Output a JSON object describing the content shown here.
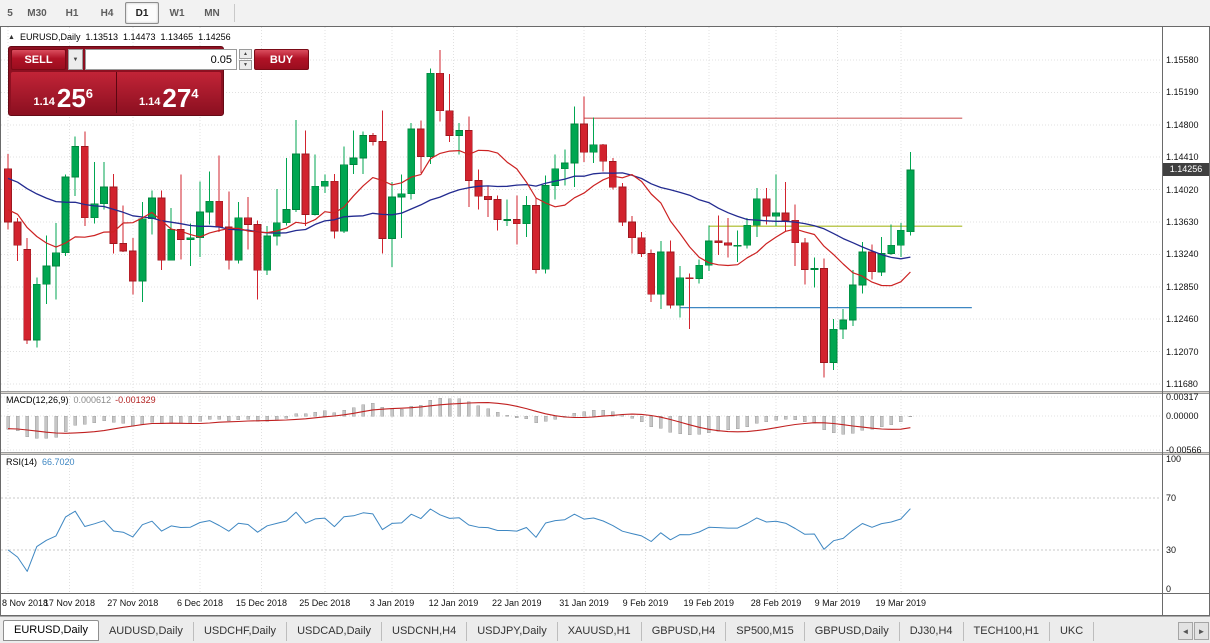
{
  "colors": {
    "bull": "#00a651",
    "bull_border": "#00843c",
    "bear": "#d2232e",
    "bear_border": "#9c1820",
    "ma_fast": "#cc2222",
    "ma_slow": "#232b90",
    "grid": "#e0e0e0",
    "macd_hist": "#c6c6c6",
    "macd_signal": "#c02020",
    "rsi_line": "#3e87c2",
    "badge_bg": "#404040",
    "trade_panel_red": "#8d1021",
    "button_red": "#c8102e"
  },
  "toolbar": {
    "timeframes": [
      {
        "label": "5",
        "active": false
      },
      {
        "label": "M30",
        "active": false
      },
      {
        "label": "H1",
        "active": false
      },
      {
        "label": "H4",
        "active": false
      },
      {
        "label": "D1",
        "active": true
      },
      {
        "label": "W1",
        "active": false
      },
      {
        "label": "MN",
        "active": false
      }
    ]
  },
  "chart": {
    "header": {
      "collapse_icon": "▲",
      "title": "EURUSD,Daily",
      "open": "1.13513",
      "high": "1.14473",
      "low": "1.13465",
      "close": "1.14256"
    },
    "trade_panel": {
      "sell_label": "SELL",
      "buy_label": "BUY",
      "volume": "0.05",
      "bid": {
        "prefix": "1.14",
        "big": "25",
        "sup": "6"
      },
      "ask": {
        "prefix": "1.14",
        "big": "27",
        "sup": "4"
      },
      "caret_icon": "▼",
      "spin_up_icon": "▲",
      "spin_down_icon": "▼"
    },
    "price_axis": {
      "ticks": [
        "1.15580",
        "1.15190",
        "1.14800",
        "1.14410",
        "1.14020",
        "1.13630",
        "1.13240",
        "1.12850",
        "1.12460",
        "1.12070",
        "1.11680"
      ],
      "current": "1.14256"
    },
    "macd_pane": {
      "name": "MACD(12,26,9)",
      "value_main": "0.000612",
      "value_signal": "-0.001329",
      "axis_ticks": [
        "0.00317",
        "0.00000",
        "-0.00566"
      ]
    },
    "rsi_pane": {
      "name": "RSI(14)",
      "value": "66.7020",
      "axis_ticks": [
        "100",
        "70",
        "30",
        "0"
      ],
      "levels": [
        70,
        30
      ]
    },
    "date_axis": [
      {
        "label": "8 Nov 2018",
        "i": 0
      },
      {
        "label": "17 Nov 2018",
        "i": 6.4
      },
      {
        "label": "27 Nov 2018",
        "i": 13
      },
      {
        "label": "6 Dec 2018",
        "i": 20
      },
      {
        "label": "15 Dec 2018",
        "i": 26.4
      },
      {
        "label": "25 Dec 2018",
        "i": 33
      },
      {
        "label": "3 Jan 2019",
        "i": 40
      },
      {
        "label": "12 Jan 2019",
        "i": 46.4
      },
      {
        "label": "22 Jan 2019",
        "i": 53
      },
      {
        "label": "31 Jan 2019",
        "i": 60
      },
      {
        "label": "9 Feb 2019",
        "i": 66.4
      },
      {
        "label": "19 Feb 2019",
        "i": 73
      },
      {
        "label": "28 Feb 2019",
        "i": 80
      },
      {
        "label": "9 Mar 2019",
        "i": 86.4
      },
      {
        "label": "19 Mar 2019",
        "i": 93
      }
    ]
  },
  "chart_data": {
    "type": "candlestick",
    "symbol": "EURUSD",
    "timeframe": "Daily",
    "columns": [
      "date",
      "open",
      "high",
      "low",
      "close"
    ],
    "candles": [
      [
        "2018.11.08",
        1.1427,
        1.1445,
        1.1354,
        1.1363
      ],
      [
        "2018.11.09",
        1.1363,
        1.1368,
        1.1316,
        1.1335
      ],
      [
        "2018.11.12",
        1.133,
        1.1344,
        1.1216,
        1.1221
      ],
      [
        "2018.11.13",
        1.1221,
        1.1296,
        1.1212,
        1.1288
      ],
      [
        "2018.11.14",
        1.1288,
        1.1347,
        1.1264,
        1.131
      ],
      [
        "2018.11.15",
        1.131,
        1.1362,
        1.127,
        1.1326
      ],
      [
        "2018.11.16",
        1.1326,
        1.142,
        1.1322,
        1.1417
      ],
      [
        "2018.11.19",
        1.1417,
        1.1466,
        1.1394,
        1.1454
      ],
      [
        "2018.11.20",
        1.1454,
        1.1472,
        1.1358,
        1.1368
      ],
      [
        "2018.11.21",
        1.1368,
        1.1435,
        1.1361,
        1.1385
      ],
      [
        "2018.11.22",
        1.1385,
        1.1435,
        1.1378,
        1.1405
      ],
      [
        "2018.11.23",
        1.1405,
        1.1421,
        1.1325,
        1.1337
      ],
      [
        "2018.11.26",
        1.1337,
        1.1383,
        1.1327,
        1.1328
      ],
      [
        "2018.11.27",
        1.1328,
        1.1344,
        1.1276,
        1.1292
      ],
      [
        "2018.11.28",
        1.1292,
        1.1387,
        1.1267,
        1.1367
      ],
      [
        "2018.11.29",
        1.1367,
        1.1401,
        1.1348,
        1.1392
      ],
      [
        "2018.11.30",
        1.1392,
        1.1401,
        1.1305,
        1.1317
      ],
      [
        "2018.12.03",
        1.1317,
        1.138,
        1.1317,
        1.1354
      ],
      [
        "2018.12.04",
        1.1354,
        1.142,
        1.1318,
        1.1342
      ],
      [
        "2018.12.05",
        1.1342,
        1.1361,
        1.131,
        1.1344
      ],
      [
        "2018.12.06",
        1.1344,
        1.1412,
        1.1321,
        1.1375
      ],
      [
        "2018.12.07",
        1.1375,
        1.1424,
        1.136,
        1.1388
      ],
      [
        "2018.12.10",
        1.1388,
        1.1443,
        1.1351,
        1.1357
      ],
      [
        "2018.12.11",
        1.1357,
        1.14,
        1.1306,
        1.1317
      ],
      [
        "2018.12.12",
        1.1317,
        1.1387,
        1.1313,
        1.1368
      ],
      [
        "2018.12.13",
        1.1368,
        1.1393,
        1.133,
        1.136
      ],
      [
        "2018.12.14",
        1.136,
        1.1365,
        1.127,
        1.1305
      ],
      [
        "2018.12.17",
        1.1305,
        1.1358,
        1.1299,
        1.1346
      ],
      [
        "2018.12.18",
        1.1346,
        1.1403,
        1.1335,
        1.1362
      ],
      [
        "2018.12.19",
        1.1362,
        1.144,
        1.1359,
        1.1378
      ],
      [
        "2018.12.20",
        1.1378,
        1.1486,
        1.1375,
        1.1445
      ],
      [
        "2018.12.21",
        1.1445,
        1.1473,
        1.1358,
        1.1372
      ],
      [
        "2018.12.24",
        1.1372,
        1.1444,
        1.1371,
        1.1406
      ],
      [
        "2018.12.25",
        1.1406,
        1.142,
        1.1398,
        1.1412
      ],
      [
        "2018.12.26",
        1.1412,
        1.1421,
        1.1343,
        1.1352
      ],
      [
        "2018.12.27",
        1.1352,
        1.1454,
        1.135,
        1.1432
      ],
      [
        "2018.12.28",
        1.1432,
        1.1473,
        1.1421,
        1.144
      ],
      [
        "2018.12.31",
        1.144,
        1.1472,
        1.1421,
        1.1467
      ],
      [
        "2019.01.01",
        1.1467,
        1.147,
        1.1455,
        1.146
      ],
      [
        "2019.01.02",
        1.146,
        1.1497,
        1.1325,
        1.1343
      ],
      [
        "2019.01.03",
        1.1343,
        1.1411,
        1.1309,
        1.1393
      ],
      [
        "2019.01.04",
        1.1393,
        1.142,
        1.1344,
        1.1397
      ],
      [
        "2019.01.07",
        1.1397,
        1.1482,
        1.139,
        1.1475
      ],
      [
        "2019.01.08",
        1.1475,
        1.1485,
        1.1422,
        1.1442
      ],
      [
        "2019.01.09",
        1.1442,
        1.1548,
        1.1433,
        1.1542
      ],
      [
        "2019.01.10",
        1.1542,
        1.157,
        1.1484,
        1.1497
      ],
      [
        "2019.01.11",
        1.1497,
        1.1541,
        1.1459,
        1.1467
      ],
      [
        "2019.01.14",
        1.1467,
        1.1482,
        1.1444,
        1.1473
      ],
      [
        "2019.01.15",
        1.1473,
        1.149,
        1.1381,
        1.1413
      ],
      [
        "2019.01.16",
        1.1413,
        1.1426,
        1.1378,
        1.1394
      ],
      [
        "2019.01.17",
        1.1394,
        1.1407,
        1.1369,
        1.139
      ],
      [
        "2019.01.18",
        1.139,
        1.1395,
        1.1353,
        1.1366
      ],
      [
        "2019.01.21",
        1.1366,
        1.139,
        1.1358,
        1.1366
      ],
      [
        "2019.01.22",
        1.1366,
        1.1395,
        1.1336,
        1.1361
      ],
      [
        "2019.01.23",
        1.1361,
        1.1394,
        1.1345,
        1.1383
      ],
      [
        "2019.01.24",
        1.1383,
        1.1392,
        1.1301,
        1.1306
      ],
      [
        "2019.01.25",
        1.1306,
        1.1419,
        1.1301,
        1.1407
      ],
      [
        "2019.01.28",
        1.1407,
        1.1444,
        1.139,
        1.1427
      ],
      [
        "2019.01.29",
        1.1427,
        1.145,
        1.1407,
        1.1434
      ],
      [
        "2019.01.30",
        1.1434,
        1.1502,
        1.1405,
        1.1481
      ],
      [
        "2019.01.31",
        1.1481,
        1.1514,
        1.1435,
        1.1447
      ],
      [
        "2019.02.01",
        1.1447,
        1.1489,
        1.1434,
        1.1456
      ],
      [
        "2019.02.04",
        1.1456,
        1.1457,
        1.1424,
        1.1436
      ],
      [
        "2019.02.05",
        1.1436,
        1.144,
        1.1402,
        1.1405
      ],
      [
        "2019.02.06",
        1.1405,
        1.141,
        1.1358,
        1.1363
      ],
      [
        "2019.02.07",
        1.1363,
        1.137,
        1.1325,
        1.1344
      ],
      [
        "2019.02.08",
        1.1344,
        1.1351,
        1.1321,
        1.1325
      ],
      [
        "2019.02.11",
        1.1325,
        1.133,
        1.1267,
        1.1276
      ],
      [
        "2019.02.12",
        1.1276,
        1.134,
        1.1258,
        1.1327
      ],
      [
        "2019.02.13",
        1.1327,
        1.1341,
        1.1259,
        1.1263
      ],
      [
        "2019.02.14",
        1.1263,
        1.131,
        1.1248,
        1.1296
      ],
      [
        "2019.02.15",
        1.1296,
        1.1301,
        1.1234,
        1.1295
      ],
      [
        "2019.02.18",
        1.1295,
        1.1318,
        1.1289,
        1.1311
      ],
      [
        "2019.02.19",
        1.1311,
        1.1359,
        1.1304,
        1.134
      ],
      [
        "2019.02.20",
        1.134,
        1.1371,
        1.1323,
        1.1338
      ],
      [
        "2019.02.21",
        1.1338,
        1.1368,
        1.132,
        1.1335
      ],
      [
        "2019.02.22",
        1.1335,
        1.1353,
        1.1315,
        1.1335
      ],
      [
        "2019.02.25",
        1.1335,
        1.1368,
        1.1331,
        1.1359
      ],
      [
        "2019.02.26",
        1.1359,
        1.1404,
        1.1345,
        1.1391
      ],
      [
        "2019.02.27",
        1.1391,
        1.1404,
        1.136,
        1.137
      ],
      [
        "2019.02.28",
        1.137,
        1.142,
        1.1358,
        1.1374
      ],
      [
        "2019.03.01",
        1.1374,
        1.1411,
        1.1352,
        1.1365
      ],
      [
        "2019.03.04",
        1.1365,
        1.1384,
        1.131,
        1.1338
      ],
      [
        "2019.03.05",
        1.1338,
        1.1344,
        1.1288,
        1.1306
      ],
      [
        "2019.03.06",
        1.1306,
        1.132,
        1.1284,
        1.1307
      ],
      [
        "2019.03.07",
        1.1307,
        1.1319,
        1.1176,
        1.1194
      ],
      [
        "2019.03.08",
        1.1194,
        1.1246,
        1.1185,
        1.1234
      ],
      [
        "2019.03.11",
        1.1234,
        1.1258,
        1.1222,
        1.1245
      ],
      [
        "2019.03.12",
        1.1245,
        1.1305,
        1.1238,
        1.1287
      ],
      [
        "2019.03.13",
        1.1287,
        1.1339,
        1.1277,
        1.1327
      ],
      [
        "2019.03.14",
        1.1327,
        1.1336,
        1.1294,
        1.1303
      ],
      [
        "2019.03.15",
        1.1303,
        1.1345,
        1.1298,
        1.1325
      ],
      [
        "2019.03.18",
        1.1325,
        1.136,
        1.1323,
        1.1335
      ],
      [
        "2019.03.19",
        1.1335,
        1.1362,
        1.1321,
        1.1353
      ],
      [
        "2019.03.20",
        1.13513,
        1.14473,
        1.13465,
        1.14256
      ]
    ],
    "pre_window_closes": [
      1.1482,
      1.147,
      1.1458,
      1.1475,
      1.1462,
      1.145,
      1.1441,
      1.1455,
      1.1448,
      1.1436,
      1.1428,
      1.144,
      1.1432,
      1.142,
      1.1412,
      1.1425,
      1.1418,
      1.1405,
      1.1398,
      1.141,
      1.1402,
      1.139,
      1.1382,
      1.1395,
      1.1388,
      1.1375,
      1.1368,
      1.138,
      1.1372,
      1.1365
    ],
    "ma_fast": {
      "type": "sma",
      "period": 10,
      "color": "#cc2222"
    },
    "ma_slow": {
      "type": "sma",
      "period": 30,
      "color": "#232b90"
    },
    "hlines": [
      {
        "price": 1.1488,
        "from_index": 60,
        "to_index": 99.4,
        "color": "#cd5c5c"
      },
      {
        "price": 1.1358,
        "from_index": 73,
        "to_index": 99.4,
        "color": "#a9b821"
      },
      {
        "price": 1.126,
        "from_index": 70,
        "to_index": 100.4,
        "color": "#3e87c2"
      }
    ],
    "macd": {
      "fast": 12,
      "slow": 26,
      "signal": 9
    },
    "rsi": {
      "period": 14
    },
    "ylim": [
      1.11596,
      1.15965
    ],
    "yticks": [
      1.1558,
      1.1519,
      1.148,
      1.1441,
      1.1402,
      1.1363,
      1.1324,
      1.1285,
      1.1246,
      1.1207,
      1.1168
    ]
  },
  "bottom_tabs": {
    "tabs": [
      {
        "label": "EURUSD,Daily",
        "active": true
      },
      {
        "label": "AUDUSD,Daily",
        "active": false
      },
      {
        "label": "USDCHF,Daily",
        "active": false
      },
      {
        "label": "USDCAD,Daily",
        "active": false
      },
      {
        "label": "USDCNH,H4",
        "active": false
      },
      {
        "label": "USDJPY,Daily",
        "active": false
      },
      {
        "label": "XAUUSD,H1",
        "active": false
      },
      {
        "label": "GBPUSD,H4",
        "active": false
      },
      {
        "label": "SP500,M15",
        "active": false
      },
      {
        "label": "GBPUSD,Daily",
        "active": false
      },
      {
        "label": "DJ30,H4",
        "active": false
      },
      {
        "label": "TECH100,H1",
        "active": false
      },
      {
        "label": "UKC",
        "active": false
      }
    ],
    "scroll_left": "◄",
    "scroll_right": "►"
  }
}
